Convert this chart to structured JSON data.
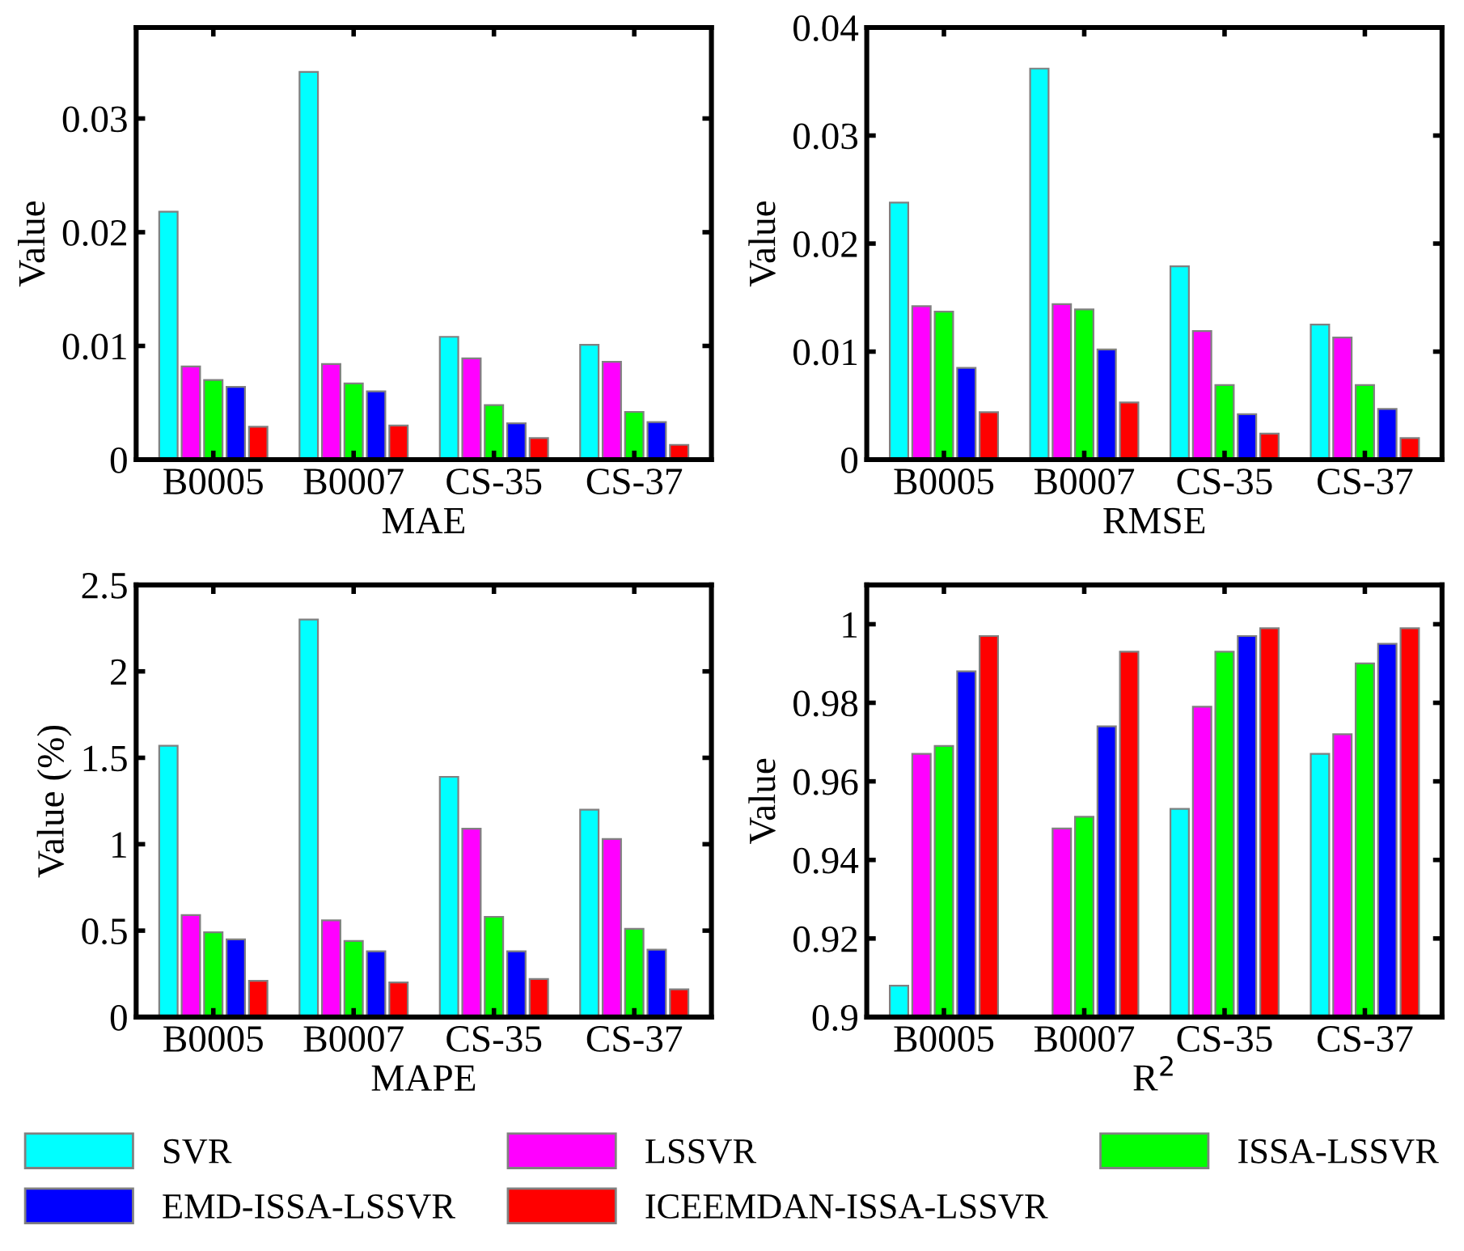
{
  "chart_data": [
    {
      "type": "bar",
      "xlabel": "MAE",
      "ylabel": "Value",
      "categories": [
        "B0005",
        "B0007",
        "CS-35",
        "CS-37"
      ],
      "ylim": [
        0,
        0.038
      ],
      "yticks": [
        0,
        0.01,
        0.02,
        0.03
      ],
      "legend": "bottom",
      "grid": false,
      "series": [
        {
          "name": "SVR",
          "color": "#00ffff",
          "values": [
            0.0218,
            0.0341,
            0.0108,
            0.0101
          ]
        },
        {
          "name": "LSSVR",
          "color": "#ff00ff",
          "values": [
            0.0082,
            0.0084,
            0.0089,
            0.0086
          ]
        },
        {
          "name": "ISSA-LSSVR",
          "color": "#00ff00",
          "values": [
            0.007,
            0.0067,
            0.0048,
            0.0042
          ]
        },
        {
          "name": "EMD-ISSA-LSSVR",
          "color": "#0000ff",
          "values": [
            0.0064,
            0.006,
            0.0032,
            0.0033
          ]
        },
        {
          "name": "ICEEMDAN-ISSA-LSSVR",
          "color": "#ff0000",
          "values": [
            0.0029,
            0.003,
            0.0019,
            0.0013
          ]
        }
      ]
    },
    {
      "type": "bar",
      "xlabel": "RMSE",
      "ylabel": "Value",
      "categories": [
        "B0005",
        "B0007",
        "CS-35",
        "CS-37"
      ],
      "ylim": [
        0,
        0.04
      ],
      "yticks": [
        0,
        0.01,
        0.02,
        0.03,
        0.04
      ],
      "grid": false,
      "series": [
        {
          "color": "#00ffff",
          "values": [
            0.0238,
            0.0362,
            0.0179,
            0.0125
          ]
        },
        {
          "color": "#ff00ff",
          "values": [
            0.0142,
            0.0144,
            0.0119,
            0.0113
          ]
        },
        {
          "color": "#00ff00",
          "values": [
            0.0137,
            0.0139,
            0.0069,
            0.0069
          ]
        },
        {
          "color": "#0000ff",
          "values": [
            0.0085,
            0.0102,
            0.0042,
            0.0047
          ]
        },
        {
          "color": "#ff0000",
          "values": [
            0.0044,
            0.0053,
            0.0024,
            0.002
          ]
        }
      ]
    },
    {
      "type": "bar",
      "xlabel": "MAPE",
      "ylabel": "Value (%)",
      "categories": [
        "B0005",
        "B0007",
        "CS-35",
        "CS-37"
      ],
      "ylim": [
        0,
        2.5
      ],
      "yticks": [
        0,
        0.5,
        1,
        1.5,
        2,
        2.5
      ],
      "grid": false,
      "series": [
        {
          "color": "#00ffff",
          "values": [
            1.57,
            2.3,
            1.39,
            1.2
          ]
        },
        {
          "color": "#ff00ff",
          "values": [
            0.59,
            0.56,
            1.09,
            1.03
          ]
        },
        {
          "color": "#00ff00",
          "values": [
            0.49,
            0.44,
            0.58,
            0.51
          ]
        },
        {
          "color": "#0000ff",
          "values": [
            0.45,
            0.38,
            0.38,
            0.39
          ]
        },
        {
          "color": "#ff0000",
          "values": [
            0.21,
            0.2,
            0.22,
            0.16
          ]
        }
      ]
    },
    {
      "type": "bar",
      "xlabel": "R$^{2}$",
      "ylabel": "Value",
      "categories": [
        "B0005",
        "B0007",
        "CS-35",
        "CS-37"
      ],
      "ylim": [
        0.9,
        1.01
      ],
      "yticks": [
        0.9,
        0.92,
        0.94,
        0.96,
        0.98,
        1
      ],
      "grid": false,
      "series": [
        {
          "color": "#00ffff",
          "values": [
            0.908,
            null,
            0.953,
            0.967
          ]
        },
        {
          "color": "#ff00ff",
          "values": [
            0.967,
            0.948,
            0.979,
            0.972
          ]
        },
        {
          "color": "#00ff00",
          "values": [
            0.969,
            0.951,
            0.993,
            0.99
          ]
        },
        {
          "color": "#0000ff",
          "values": [
            0.988,
            0.974,
            0.997,
            0.995
          ]
        },
        {
          "color": "#ff0000",
          "values": [
            0.997,
            0.993,
            0.999,
            0.999
          ]
        }
      ]
    }
  ]
}
